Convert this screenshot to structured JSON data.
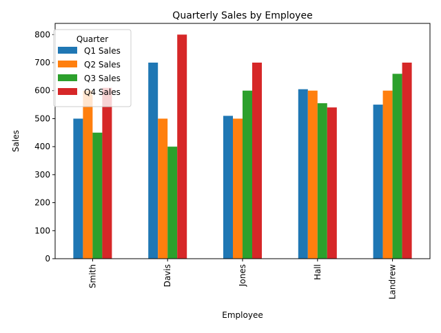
{
  "chart_data": {
    "type": "bar",
    "title": "Quarterly Sales by Employee",
    "xlabel": "Employee",
    "ylabel": "Sales",
    "categories": [
      "Smith",
      "Davis",
      "Jones",
      "Hall",
      "Landrew"
    ],
    "series": [
      {
        "name": "Q1 Sales",
        "color": "#1f77b4",
        "values": [
          500,
          700,
          510,
          605,
          550
        ]
      },
      {
        "name": "Q2 Sales",
        "color": "#ff7f0e",
        "values": [
          600,
          500,
          500,
          600,
          600
        ]
      },
      {
        "name": "Q3 Sales",
        "color": "#2ca02c",
        "values": [
          450,
          400,
          600,
          555,
          660
        ]
      },
      {
        "name": "Q4 Sales",
        "color": "#d62728",
        "values": [
          610,
          800,
          700,
          540,
          700
        ]
      }
    ],
    "ylim": [
      0,
      840
    ],
    "yticks": [
      0,
      100,
      200,
      300,
      400,
      500,
      600,
      700,
      800
    ],
    "legend": {
      "title": "Quarter",
      "placement": "top-left"
    },
    "grid": false,
    "xtick_rotation": "vertical"
  }
}
